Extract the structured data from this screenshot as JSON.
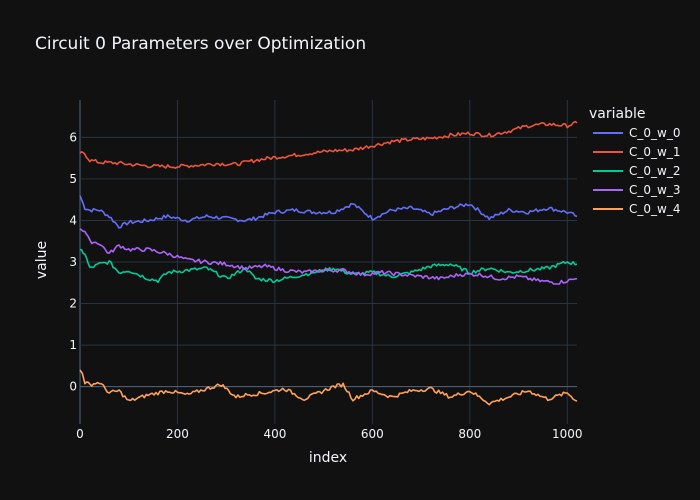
{
  "chart_data": {
    "type": "line",
    "title": "Circuit 0 Parameters over Optimization",
    "xlabel": "index",
    "ylabel": "value",
    "xlim": [
      0,
      1020
    ],
    "ylim": [
      -0.9,
      6.9
    ],
    "xticks": [
      0,
      200,
      400,
      600,
      800,
      1000
    ],
    "yticks": [
      0,
      1,
      2,
      3,
      4,
      5,
      6
    ],
    "grid": true,
    "legend": {
      "title": "variable",
      "placement": "top-right outside"
    },
    "series": [
      {
        "name": "C_0_w_0",
        "color": "#636efa",
        "x": [
          0,
          10,
          20,
          40,
          60,
          80,
          100,
          140,
          180,
          220,
          260,
          300,
          340,
          360,
          400,
          440,
          480,
          520,
          560,
          600,
          640,
          680,
          720,
          760,
          800,
          840,
          880,
          920,
          960,
          1000,
          1020
        ],
        "y": [
          4.6,
          4.3,
          4.25,
          4.25,
          4.1,
          3.85,
          3.95,
          4.0,
          4.1,
          4.0,
          4.1,
          4.05,
          4.0,
          4.05,
          4.2,
          4.25,
          4.2,
          4.2,
          4.4,
          4.05,
          4.25,
          4.3,
          4.15,
          4.3,
          4.4,
          4.05,
          4.25,
          4.2,
          4.3,
          4.2,
          4.1
        ]
      },
      {
        "name": "C_0_w_1",
        "color": "#ef553b",
        "x": [
          0,
          10,
          20,
          40,
          80,
          120,
          160,
          200,
          240,
          280,
          320,
          360,
          400,
          440,
          480,
          520,
          560,
          600,
          640,
          680,
          720,
          760,
          800,
          840,
          880,
          920,
          960,
          1000,
          1020
        ],
        "y": [
          5.62,
          5.6,
          5.45,
          5.4,
          5.38,
          5.33,
          5.3,
          5.3,
          5.33,
          5.37,
          5.35,
          5.45,
          5.52,
          5.57,
          5.63,
          5.68,
          5.7,
          5.8,
          5.9,
          5.95,
          5.98,
          6.05,
          6.1,
          6.05,
          6.15,
          6.28,
          6.32,
          6.28,
          6.35
        ]
      },
      {
        "name": "C_0_w_2",
        "color": "#00cc96",
        "x": [
          0,
          10,
          20,
          40,
          60,
          80,
          100,
          140,
          160,
          180,
          220,
          260,
          300,
          340,
          360,
          400,
          440,
          480,
          520,
          560,
          600,
          640,
          680,
          720,
          760,
          800,
          840,
          880,
          920,
          960,
          1000,
          1020
        ],
        "y": [
          3.3,
          3.2,
          2.85,
          2.95,
          3.0,
          2.75,
          2.8,
          2.6,
          2.55,
          2.75,
          2.8,
          2.85,
          2.6,
          2.85,
          2.6,
          2.55,
          2.65,
          2.75,
          2.85,
          2.7,
          2.75,
          2.65,
          2.75,
          2.9,
          2.95,
          2.75,
          2.85,
          2.75,
          2.8,
          2.85,
          3.0,
          2.95
        ]
      },
      {
        "name": "C_0_w_3",
        "color": "#ab63fa",
        "x": [
          0,
          10,
          20,
          40,
          60,
          80,
          100,
          140,
          180,
          220,
          260,
          300,
          340,
          380,
          420,
          460,
          500,
          540,
          580,
          620,
          660,
          700,
          740,
          780,
          820,
          860,
          900,
          940,
          980,
          1020
        ],
        "y": [
          3.8,
          3.75,
          3.5,
          3.45,
          3.2,
          3.4,
          3.3,
          3.3,
          3.2,
          3.05,
          3.0,
          2.95,
          2.85,
          2.9,
          2.8,
          2.75,
          2.8,
          2.8,
          2.7,
          2.75,
          2.7,
          2.65,
          2.6,
          2.7,
          2.7,
          2.6,
          2.65,
          2.55,
          2.5,
          2.6
        ]
      },
      {
        "name": "C_0_w_4",
        "color": "#ffa15a",
        "x": [
          0,
          5,
          10,
          20,
          40,
          60,
          80,
          100,
          140,
          180,
          220,
          260,
          290,
          320,
          340,
          380,
          420,
          460,
          500,
          520,
          540,
          560,
          600,
          640,
          680,
          720,
          760,
          800,
          840,
          880,
          920,
          960,
          1000,
          1020
        ],
        "y": [
          0.4,
          0.35,
          0.1,
          0.05,
          0.1,
          -0.15,
          -0.1,
          -0.35,
          -0.2,
          -0.1,
          -0.2,
          -0.05,
          0.05,
          -0.25,
          -0.2,
          -0.15,
          -0.05,
          -0.3,
          -0.1,
          0.0,
          0.05,
          -0.3,
          -0.1,
          -0.25,
          -0.1,
          -0.05,
          -0.25,
          -0.1,
          -0.4,
          -0.25,
          -0.1,
          -0.3,
          -0.15,
          -0.35
        ]
      }
    ]
  }
}
